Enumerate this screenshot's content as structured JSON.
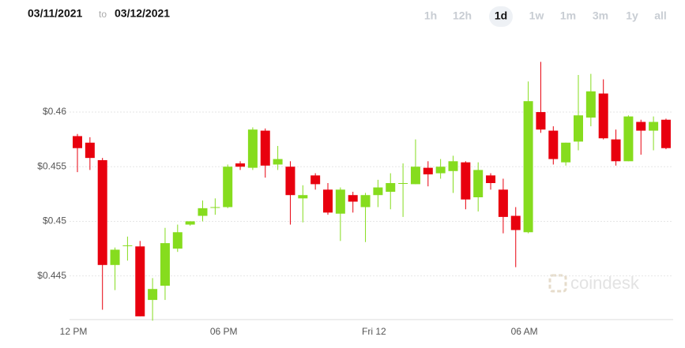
{
  "header": {
    "start_date": "03/11/2021",
    "separator": "to",
    "end_date": "03/12/2021",
    "ranges": [
      "1h",
      "12h",
      "1d",
      "1w",
      "1m",
      "3m",
      "1y",
      "all"
    ],
    "selected_range": "1d"
  },
  "watermark": "coindesk",
  "chart_data": {
    "type": "candlestick",
    "categories": [
      "12 PM",
      null,
      null,
      null,
      null,
      null,
      null,
      null,
      null,
      null,
      null,
      null,
      "06 PM",
      null,
      null,
      null,
      null,
      null,
      null,
      null,
      null,
      null,
      null,
      null,
      "Fri 12",
      null,
      null,
      null,
      null,
      null,
      null,
      null,
      null,
      null,
      null,
      null,
      "06 AM",
      null,
      null,
      null,
      null,
      null,
      null,
      null,
      null,
      null,
      null,
      null
    ],
    "open": [
      0.4578,
      0.4572,
      0.4556,
      0.446,
      0.4478,
      0.4477,
      0.4428,
      0.4441,
      0.4475,
      0.4497,
      0.4505,
      0.4513,
      0.4513,
      0.4553,
      0.4549,
      0.4583,
      0.4552,
      0.455,
      0.4521,
      0.4542,
      0.4529,
      0.4507,
      0.4524,
      0.4513,
      0.4524,
      0.4527,
      0.4535,
      0.4534,
      0.4549,
      0.4544,
      0.4546,
      0.4554,
      0.4522,
      0.4542,
      0.4529,
      0.4505,
      0.449,
      0.46,
      0.4583,
      0.4554,
      0.4573,
      0.4595,
      0.4617,
      0.4575,
      0.4555,
      0.4591,
      0.4583,
      0.4593
    ],
    "high": [
      0.458,
      0.4577,
      0.4558,
      0.4476,
      0.4486,
      0.4482,
      0.4448,
      0.4494,
      0.4497,
      0.45,
      0.4519,
      0.4521,
      0.4552,
      0.4555,
      0.4586,
      0.4585,
      0.4569,
      0.4555,
      0.4533,
      0.4544,
      0.4535,
      0.4531,
      0.4527,
      0.4526,
      0.4538,
      0.4544,
      0.4553,
      0.4575,
      0.4555,
      0.4557,
      0.456,
      0.4555,
      0.4554,
      0.4544,
      0.4539,
      0.4513,
      0.4628,
      0.4646,
      0.4587,
      0.4572,
      0.4634,
      0.4635,
      0.463,
      0.4584,
      0.4597,
      0.4593,
      0.4596,
      0.4594
    ],
    "low": [
      0.4545,
      0.4547,
      0.4419,
      0.4437,
      0.4464,
      0.4413,
      0.4409,
      0.4428,
      0.4472,
      0.4496,
      0.45,
      0.4506,
      0.4512,
      0.4547,
      0.4547,
      0.454,
      0.4547,
      0.4497,
      0.4499,
      0.4529,
      0.4506,
      0.4482,
      0.4508,
      0.4481,
      0.4513,
      0.4511,
      0.4504,
      0.4534,
      0.4532,
      0.4539,
      0.4526,
      0.4511,
      0.4509,
      0.4529,
      0.4489,
      0.4458,
      0.4489,
      0.4581,
      0.4552,
      0.4551,
      0.4565,
      0.4587,
      0.4575,
      0.4551,
      0.4555,
      0.4561,
      0.4565,
      0.4566
    ],
    "close": [
      0.4567,
      0.4558,
      0.446,
      0.4474,
      0.4478,
      0.4413,
      0.4438,
      0.448,
      0.449,
      0.45,
      0.4512,
      0.4513,
      0.455,
      0.455,
      0.4584,
      0.4551,
      0.4557,
      0.4524,
      0.4524,
      0.4534,
      0.4508,
      0.4529,
      0.4518,
      0.4524,
      0.4531,
      0.4535,
      0.4535,
      0.455,
      0.4543,
      0.455,
      0.4555,
      0.452,
      0.4547,
      0.4535,
      0.4504,
      0.4492,
      0.461,
      0.4584,
      0.4557,
      0.4572,
      0.4597,
      0.4619,
      0.4576,
      0.4555,
      0.4596,
      0.4583,
      0.4591,
      0.4567
    ],
    "up_color": "#86dc1e",
    "down_color": "#e8000e",
    "ylim": [
      0.441,
      0.466
    ],
    "yticks": [
      {
        "value": 0.445,
        "label": "$0.445"
      },
      {
        "value": 0.45,
        "label": "$0.45"
      },
      {
        "value": 0.455,
        "label": "$0.455"
      },
      {
        "value": 0.46,
        "label": "$0.46"
      }
    ],
    "grid": true
  }
}
